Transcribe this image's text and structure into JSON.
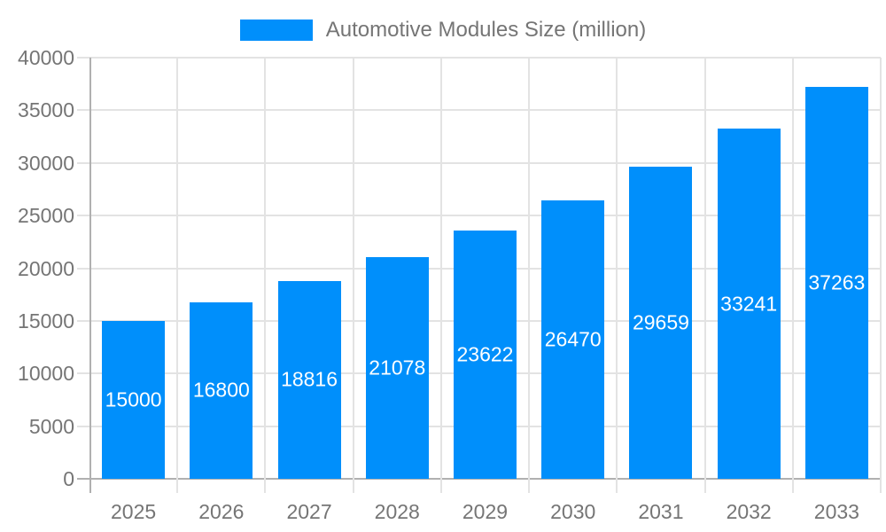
{
  "chart_data": {
    "type": "bar",
    "title": "",
    "legend_entries": [
      "Automotive Modules Size (million)"
    ],
    "legend_position": "top",
    "categories": [
      "2025",
      "2026",
      "2027",
      "2028",
      "2029",
      "2030",
      "2031",
      "2032",
      "2033"
    ],
    "series": [
      {
        "name": "Automotive Modules Size (million)",
        "values": [
          15000,
          16800,
          18816,
          21078,
          23622,
          26470,
          29659,
          33241,
          37263
        ]
      }
    ],
    "bar_value_labels": [
      "15000",
      "16800",
      "18816",
      "21078",
      "23622",
      "26470",
      "29659",
      "33241",
      "37263"
    ],
    "xlabel": "",
    "ylabel": "",
    "ylim": [
      0,
      40000
    ],
    "ytick_step": 5000,
    "yticks": [
      "0",
      "5000",
      "10000",
      "15000",
      "20000",
      "25000",
      "30000",
      "35000",
      "40000"
    ],
    "grid": true,
    "colors": {
      "bar": "#008FFB",
      "axis_line": "#b0b0b0",
      "gridline": "#e3e3e3",
      "tick_label": "#757575",
      "legend_text": "#757575",
      "bar_value_label": "#ffffff",
      "background": "#ffffff"
    }
  }
}
